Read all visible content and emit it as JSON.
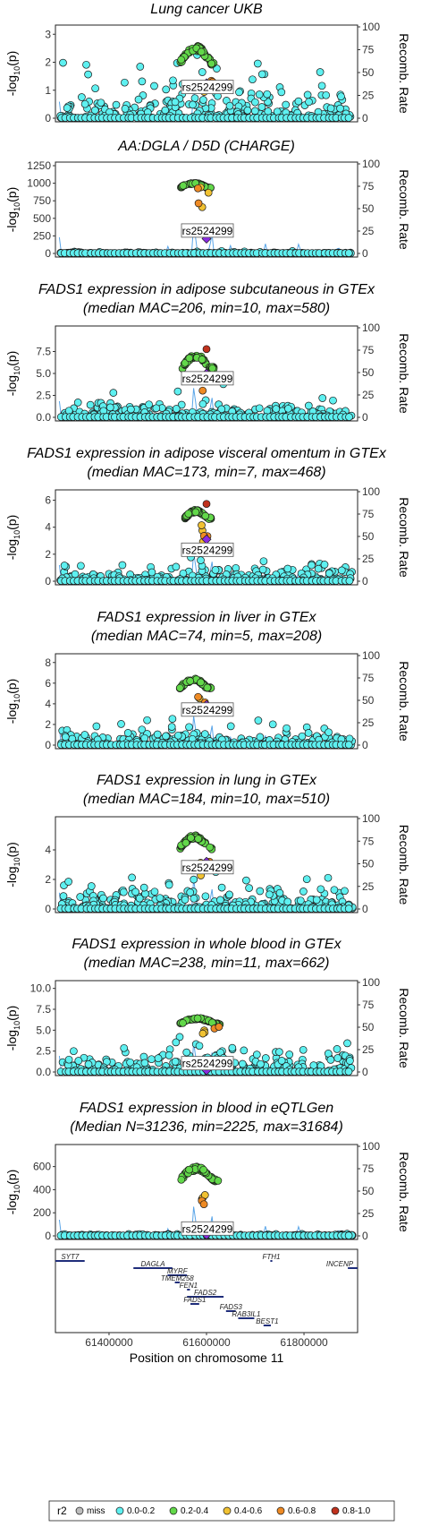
{
  "chart_data": {
    "type": "scatter",
    "x_axis": {
      "label": "Position on chromosome 11",
      "ticks": [
        61400000,
        61600000,
        61800000
      ],
      "tick_labels": [
        "61400000",
        "61600000",
        "61800000"
      ],
      "range": [
        61290000,
        61910000
      ]
    },
    "ylabel_left": "-log10(p)",
    "ylabel_left_main": "-log",
    "ylabel_left_sub": "10",
    "ylabel_left_tail": "(p)",
    "ylabel_right": "Recomb. Rate",
    "recomb_ticks": [
      "0",
      "25",
      "50",
      "75",
      "100"
    ],
    "lead_snp": "rs2524299",
    "lead_snp_pos": 61600000,
    "panels": [
      {
        "id": "p1",
        "title_lines": [
          "Lung cancer UKB"
        ],
        "ylim": [
          0,
          3.2
        ],
        "yticks": [
          0,
          1,
          2,
          3
        ],
        "ytick_labels": [
          "0",
          "1",
          "2",
          "3"
        ],
        "bg_mean": 0.4,
        "bg_max": 2.0,
        "peak_range": [
          61545000,
          61620000
        ],
        "peak_y": [
          1.3,
          2.6
        ],
        "lead_y": 1.25,
        "lead_label_y": 1.1,
        "seed": 11
      },
      {
        "id": "p2",
        "title_lines": [
          "AA:DGLA / D5D (CHARGE)"
        ],
        "ylim": [
          0,
          1250
        ],
        "yticks": [
          0,
          250,
          500,
          750,
          1000,
          1250
        ],
        "ytick_labels": [
          "0",
          "250",
          "500",
          "750",
          "1000",
          "1250"
        ],
        "bg_mean": 5,
        "bg_max": 150,
        "peak_range": [
          61545000,
          61610000
        ],
        "peak_y": [
          860,
          1010
        ],
        "lead_y": 210,
        "lead_label_y": 320,
        "seed": 22
      },
      {
        "id": "p3",
        "title_lines": [
          "FADS1 expression in adipose subcutaneous in GTEx",
          "(median MAC=206, min=10, max=580)"
        ],
        "ylim": [
          0,
          10
        ],
        "yticks": [
          0,
          2.5,
          5,
          7.5
        ],
        "ytick_labels": [
          "0.0",
          "2.5",
          "5.0",
          "7.5"
        ],
        "bg_mean": 0.5,
        "bg_max": 3.0,
        "peak_range": [
          61550000,
          61615000
        ],
        "peak_y": [
          4.0,
          7.2
        ],
        "lead_y": 5.0,
        "lead_label_y": 4.4,
        "seed": 33
      },
      {
        "id": "p4",
        "title_lines": [
          "FADS1 expression in adipose visceral omentum in GTEx",
          "(median MAC=173, min=7, max=468)"
        ],
        "ylim": [
          0,
          6.5
        ],
        "yticks": [
          0,
          2,
          4,
          6
        ],
        "ytick_labels": [
          "0",
          "2",
          "4",
          "6"
        ],
        "bg_mean": 0.35,
        "bg_max": 1.5,
        "peak_range": [
          61555000,
          61610000
        ],
        "peak_y": [
          4.0,
          5.3
        ],
        "lead_y": 3.1,
        "lead_label_y": 2.3,
        "seed": 44
      },
      {
        "id": "p5",
        "title_lines": [
          "FADS1 expression in liver in GTEx",
          "(median MAC=74, min=5, max=208)"
        ],
        "ylim": [
          0,
          8.5
        ],
        "yticks": [
          0,
          2,
          4,
          6,
          8
        ],
        "ytick_labels": [
          "0",
          "2",
          "4",
          "6",
          "8"
        ],
        "bg_mean": 0.5,
        "bg_max": 2.5,
        "peak_range": [
          61545000,
          61610000
        ],
        "peak_y": [
          4.5,
          6.5
        ],
        "lead_y": 3.9,
        "lead_label_y": 3.4,
        "seed": 55
      },
      {
        "id": "p6",
        "title_lines": [
          "FADS1 expression in lung in GTEx",
          "(median MAC=184, min=10, max=510)"
        ],
        "ylim": [
          0,
          6
        ],
        "yticks": [
          0,
          2,
          4
        ],
        "ytick_labels": [
          "0",
          "2",
          "4"
        ],
        "bg_mean": 0.5,
        "bg_max": 2.2,
        "peak_range": [
          61545000,
          61615000
        ],
        "peak_y": [
          3.2,
          5.0
        ],
        "lead_y": 3.2,
        "lead_label_y": 2.8,
        "seed": 66
      },
      {
        "id": "p7",
        "title_lines": [
          "FADS1 expression in whole blood in GTEx",
          "(median MAC=238, min=11, max=662)"
        ],
        "ylim": [
          0,
          10.5
        ],
        "yticks": [
          0,
          2.5,
          5,
          7.5,
          10
        ],
        "ytick_labels": [
          "0.0",
          "2.5",
          "5.0",
          "7.5",
          "10.0"
        ],
        "bg_mean": 0.8,
        "bg_max": 3.5,
        "peak_range": [
          61545000,
          61630000
        ],
        "peak_y": [
          5.0,
          6.5
        ],
        "lead_y": 0.2,
        "lead_label_y": 1.0,
        "seed": 77
      },
      {
        "id": "p8",
        "title_lines": [
          "FADS1 expression in blood in eQTLGen",
          "(Median N=31236, min=2225, max=31684)"
        ],
        "ylim": [
          0,
          760
        ],
        "yticks": [
          0,
          200,
          400,
          600
        ],
        "ytick_labels": [
          "0",
          "200",
          "400",
          "600"
        ],
        "bg_mean": 4,
        "bg_max": 60,
        "peak_range": [
          61545000,
          61625000
        ],
        "peak_y": [
          360,
          600
        ],
        "lead_y": 10,
        "lead_label_y": 60,
        "seed": 88
      }
    ],
    "genes": [
      {
        "name": "SYT7",
        "start": 61290000,
        "end": 61350000,
        "row": 0
      },
      {
        "name": "DAGLA",
        "start": 61450000,
        "end": 61530000,
        "row": 1
      },
      {
        "name": "MYRF",
        "start": 61520000,
        "end": 61560000,
        "row": 2
      },
      {
        "name": "TMEM258",
        "start": 61535000,
        "end": 61545000,
        "row": 3
      },
      {
        "name": "FEN1",
        "start": 61560000,
        "end": 61566000,
        "row": 4
      },
      {
        "name": "FADS2",
        "start": 61560000,
        "end": 61635000,
        "row": 5
      },
      {
        "name": "FADS1",
        "start": 61567000,
        "end": 61585000,
        "row": 6
      },
      {
        "name": "FADS3",
        "start": 61640000,
        "end": 61660000,
        "row": 7
      },
      {
        "name": "RAB3IL1",
        "start": 61665000,
        "end": 61698000,
        "row": 8
      },
      {
        "name": "BEST1",
        "start": 61717000,
        "end": 61732000,
        "row": 9
      },
      {
        "name": "FTH1",
        "start": 61731000,
        "end": 61735000,
        "row": 0
      },
      {
        "name": "INCENP",
        "start": 61890000,
        "end": 61921000,
        "row": 1
      }
    ],
    "legend": {
      "title": "r2",
      "entries": [
        {
          "label": "miss",
          "color": "#bdbdbd"
        },
        {
          "label": "0.0-0.2",
          "color": "#5ef0f0"
        },
        {
          "label": "0.2-0.4",
          "color": "#62d84a"
        },
        {
          "label": "0.4-0.6",
          "color": "#f1c232"
        },
        {
          "label": "0.6-0.8",
          "color": "#ee8a24"
        },
        {
          "label": "0.8-1.0",
          "color": "#c0321e"
        }
      ],
      "lead_color": "#8a2be2",
      "position": "bottom"
    }
  }
}
